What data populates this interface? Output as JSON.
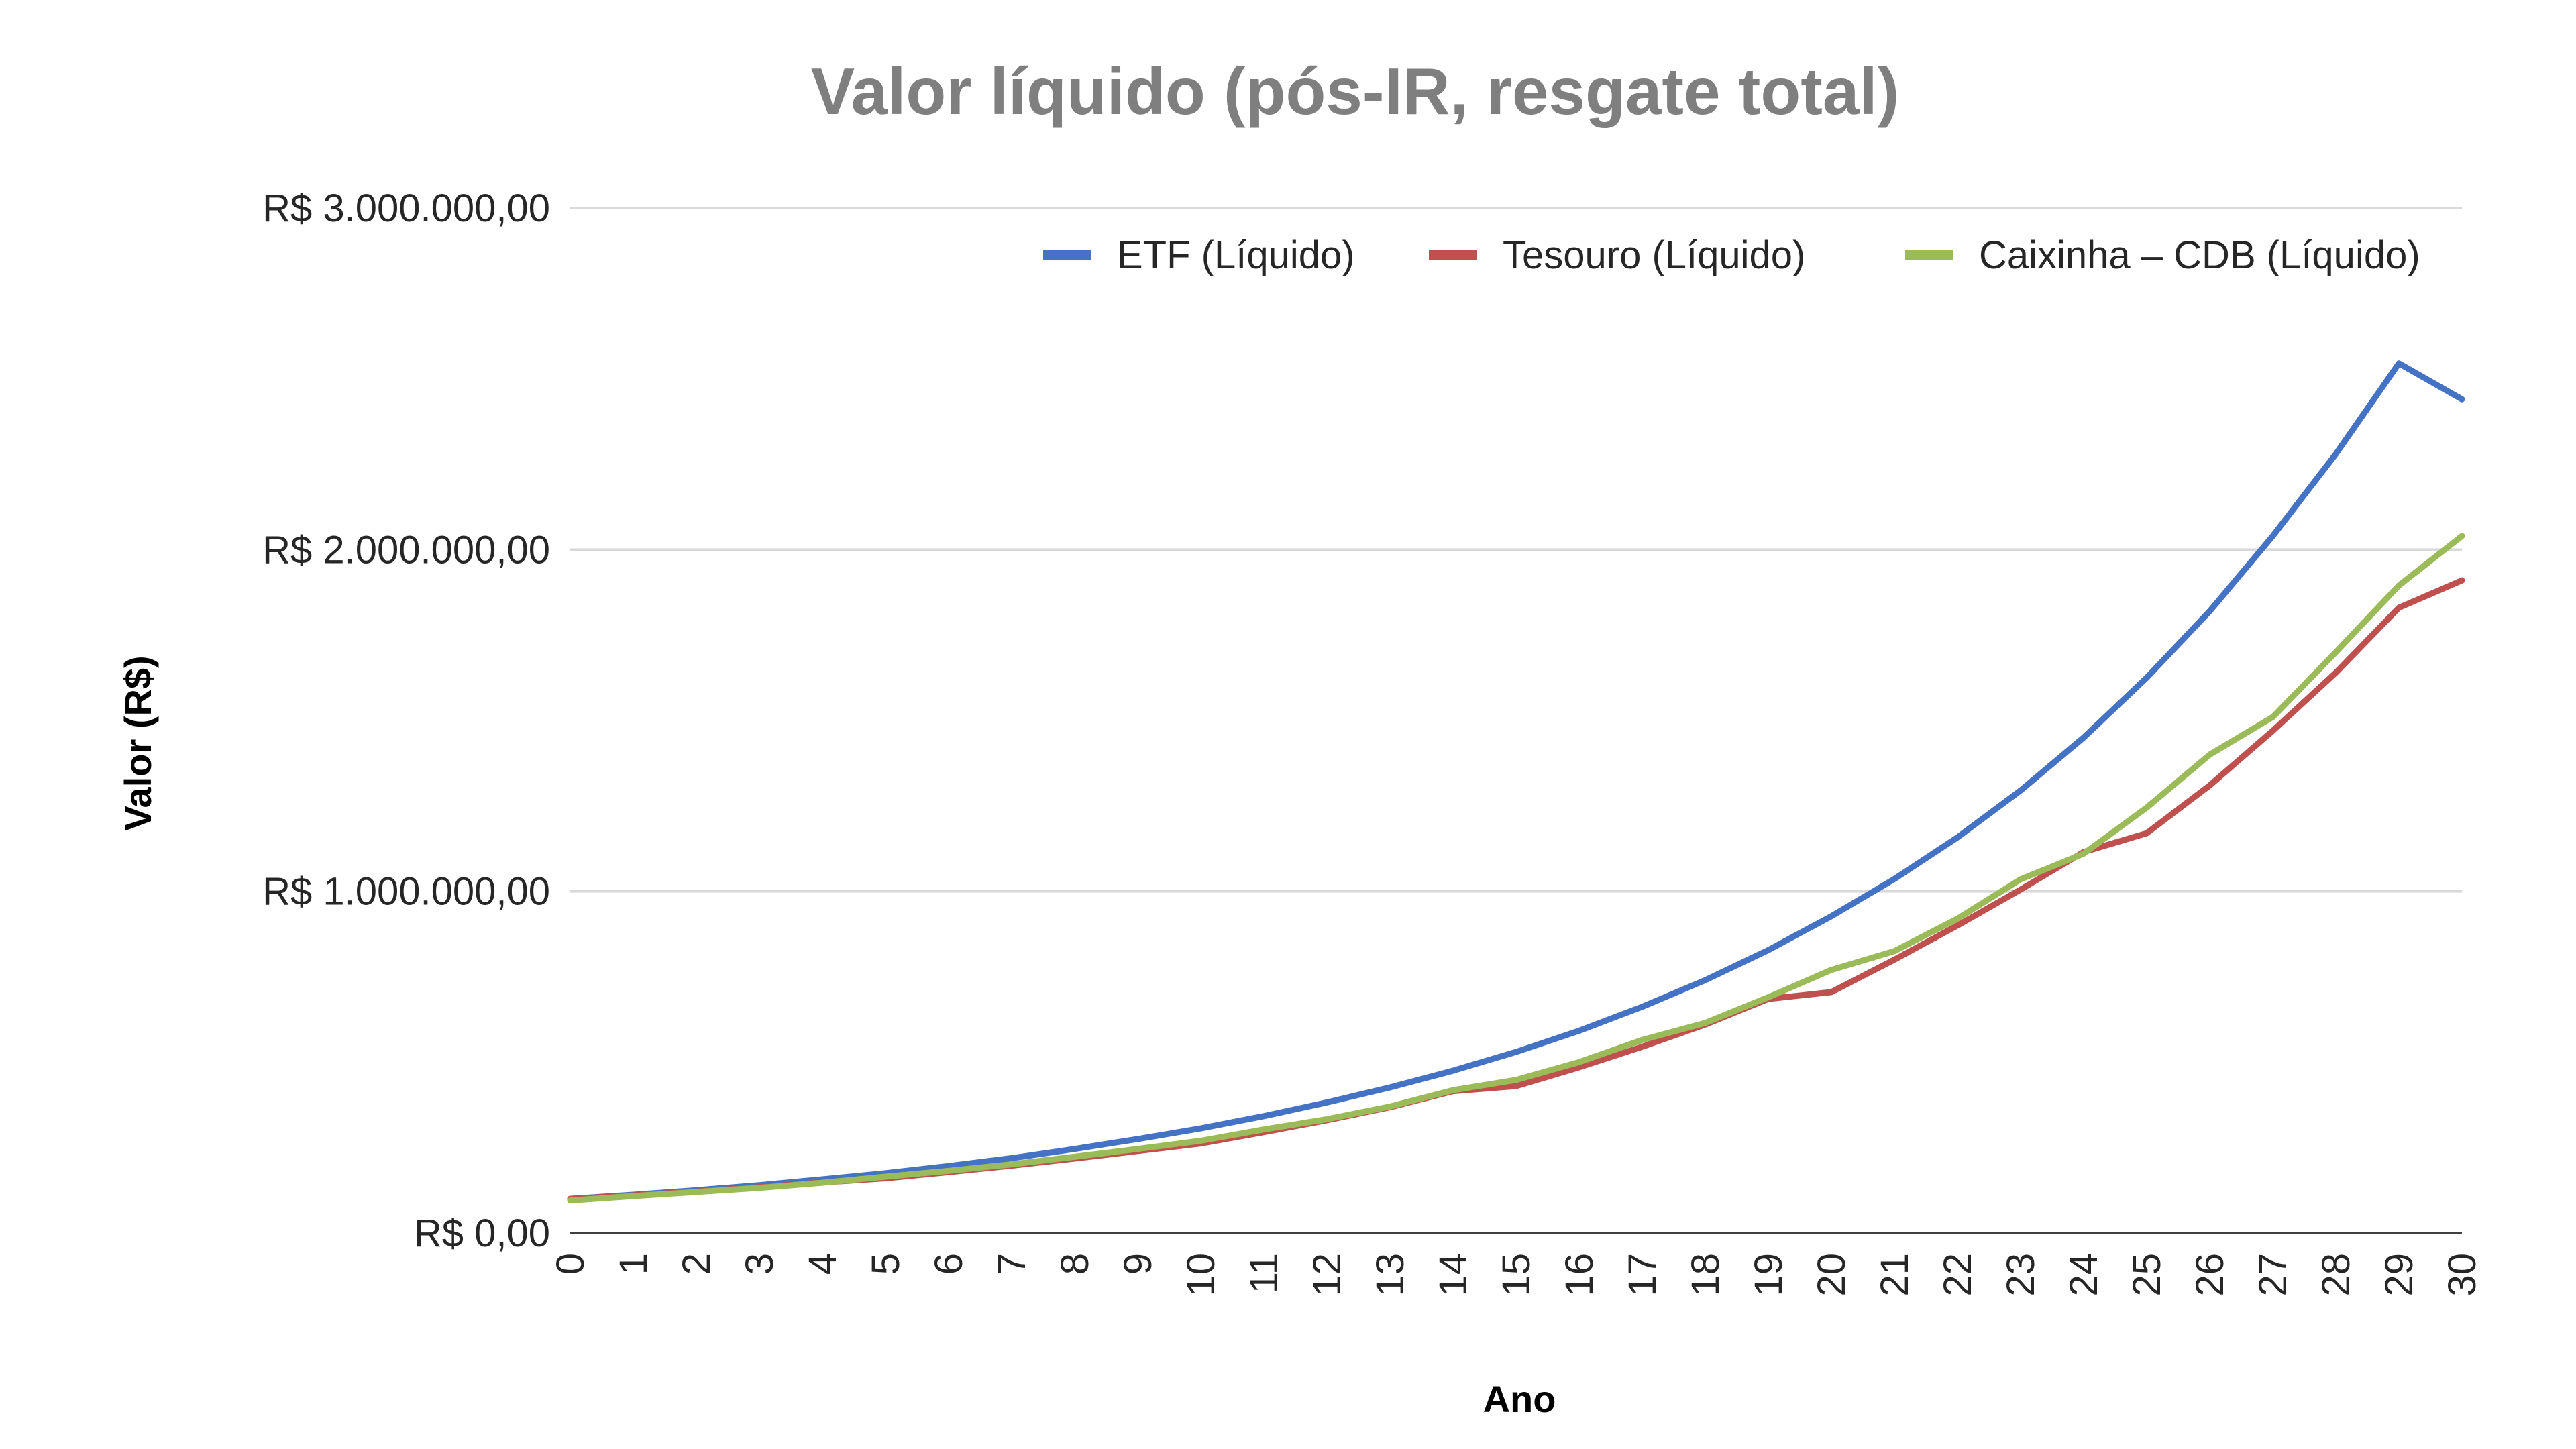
{
  "chart_data": {
    "type": "line",
    "title": "Valor líquido (pós-IR, resgate total)",
    "xlabel": "Ano",
    "ylabel": "Valor (R$)",
    "x": [
      0,
      1,
      2,
      3,
      4,
      5,
      6,
      7,
      8,
      9,
      10,
      11,
      12,
      13,
      14,
      15,
      16,
      17,
      18,
      19,
      20,
      21,
      22,
      23,
      24,
      25,
      26,
      27,
      28,
      29,
      30
    ],
    "x_tick_labels": [
      "0",
      "1",
      "2",
      "3",
      "4",
      "5",
      "6",
      "7",
      "8",
      "9",
      "10",
      "11",
      "12",
      "13",
      "14",
      "15",
      "16",
      "17",
      "18",
      "19",
      "20",
      "21",
      "22",
      "23",
      "24",
      "25",
      "26",
      "27",
      "28",
      "29",
      "30"
    ],
    "ylim": [
      0,
      3000000
    ],
    "y_ticks": [
      0,
      1000000,
      2000000,
      3000000
    ],
    "y_tick_labels": [
      "R$ 0,00",
      "R$ 1.000.000,00",
      "R$ 2.000.000,00",
      "R$ 3.000.000,00"
    ],
    "grid": true,
    "legend_position": "top-right",
    "series": [
      {
        "name": "ETF (Líquido)",
        "color": "#4472c4",
        "values": [
          100000,
          112000,
          125000,
          140000,
          157000,
          175000,
          196000,
          219000,
          246000,
          275000,
          306000,
          342000,
          382000,
          426000,
          475000,
          530000,
          592000,
          662000,
          740000,
          828000,
          927000,
          1036000,
          1158000,
          1295000,
          1450000,
          1625000,
          1820000,
          2040000,
          2280000,
          2545000,
          2440000
        ]
      },
      {
        "name": "Tesouro (Líquido)",
        "color": "#c0504d",
        "values": [
          100000,
          110000,
          121000,
          134000,
          148000,
          160000,
          178000,
          197000,
          218000,
          240000,
          262000,
          295000,
          330000,
          368000,
          415000,
          430000,
          485000,
          545000,
          610000,
          685000,
          705000,
          800000,
          900000,
          1005000,
          1115000,
          1170000,
          1310000,
          1470000,
          1640000,
          1830000,
          1910000
        ]
      },
      {
        "name": "Caixinha – CDB (Líquido)",
        "color": "#9bbb59",
        "values": [
          95000,
          108000,
          120000,
          132000,
          147000,
          165000,
          182000,
          201000,
          223000,
          246000,
          270000,
          303000,
          333000,
          370000,
          418000,
          448000,
          500000,
          565000,
          615000,
          690000,
          770000,
          825000,
          920000,
          1035000,
          1110000,
          1245000,
          1400000,
          1510000,
          1700000,
          1895000,
          2040000
        ]
      }
    ]
  }
}
